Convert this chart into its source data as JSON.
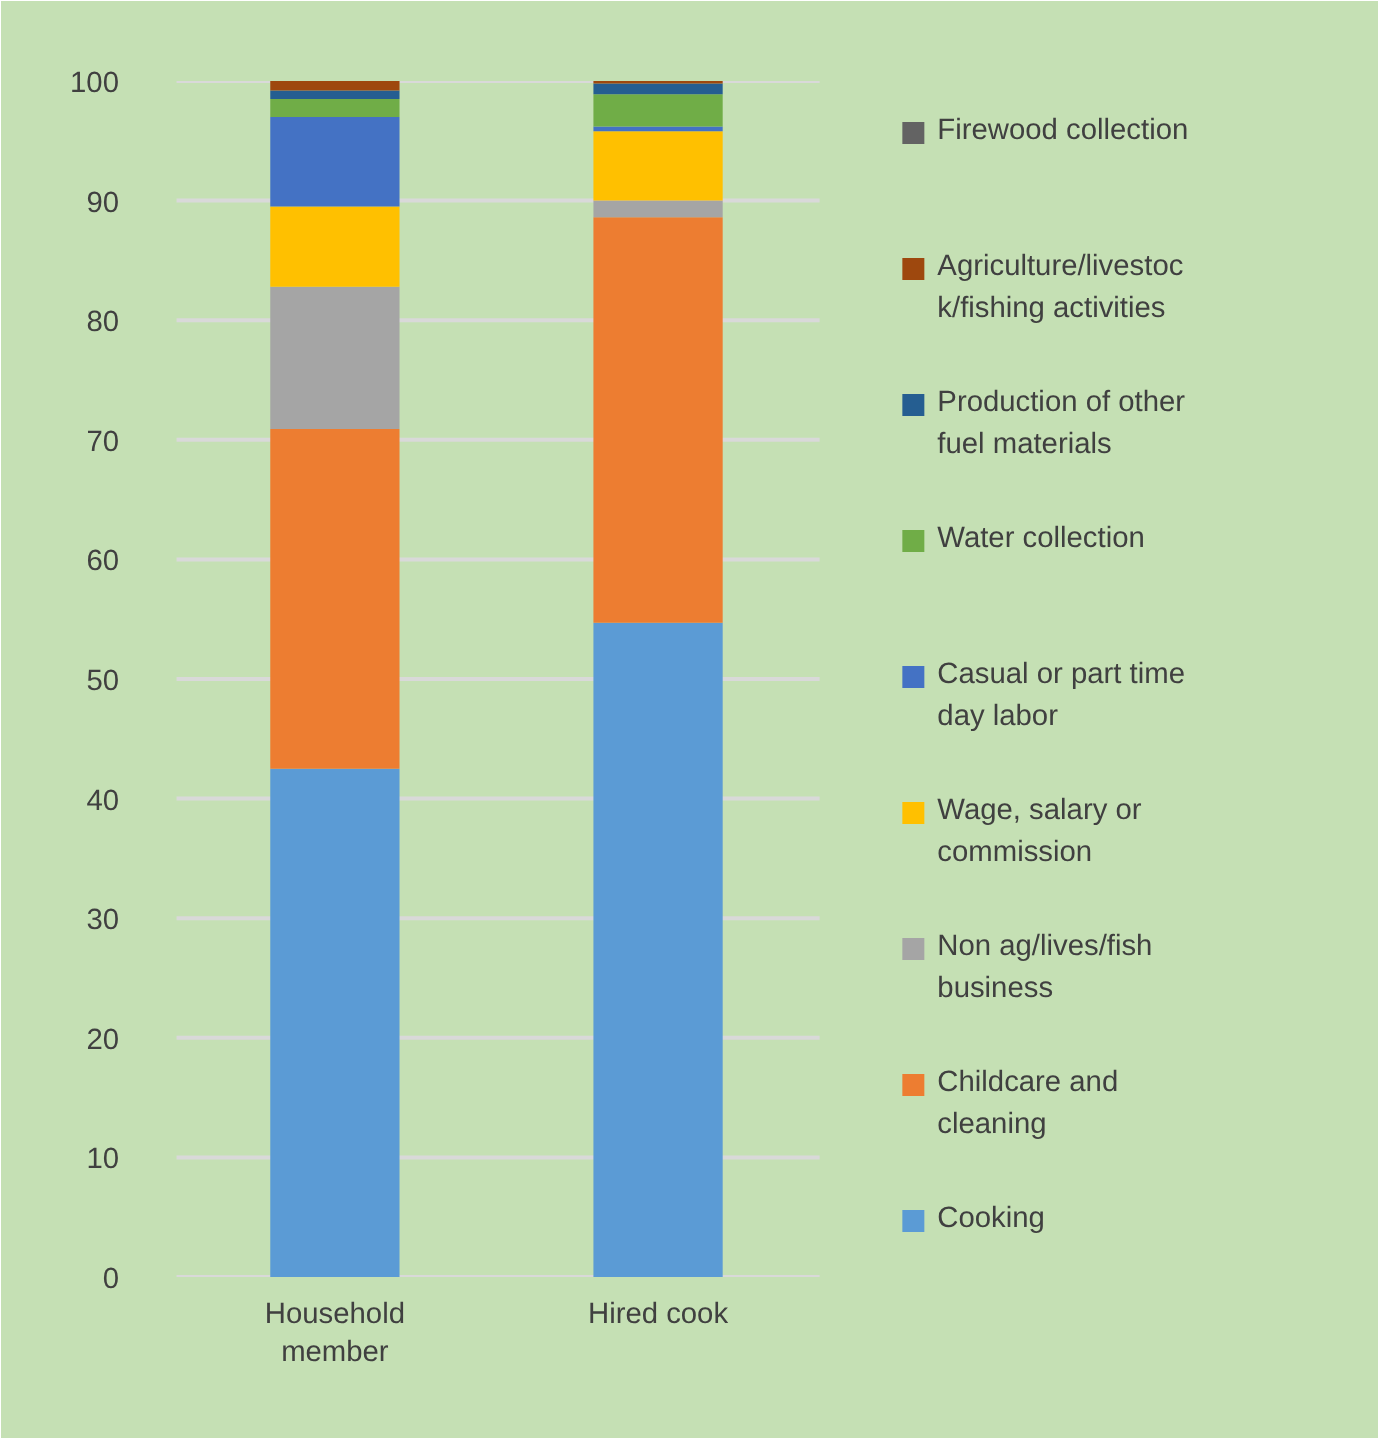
{
  "chart_data": {
    "type": "bar",
    "stacked": true,
    "categories": [
      "Household member",
      "Hired cook"
    ],
    "series": [
      {
        "name": "Cooking",
        "color": "#5b9bd5",
        "values": [
          42.5,
          54.7
        ]
      },
      {
        "name": "Childcare and cleaning",
        "color": "#ed7d31",
        "values": [
          28.4,
          33.9
        ]
      },
      {
        "name": "Non ag/lives/fish business",
        "color": "#a5a5a5",
        "values": [
          11.9,
          1.4
        ]
      },
      {
        "name": "Wage, salary or commission",
        "color": "#ffc000",
        "values": [
          6.7,
          5.8
        ]
      },
      {
        "name": "Casual or part time day labor",
        "color": "#4472c4",
        "values": [
          7.5,
          0.4
        ]
      },
      {
        "name": "Water collection",
        "color": "#70ad47",
        "values": [
          1.5,
          2.7
        ]
      },
      {
        "name": "Production of other fuel materials",
        "color": "#255e91",
        "values": [
          0.7,
          0.9
        ]
      },
      {
        "name": "Agriculture/livestock/fishing activities",
        "color": "#9e480e",
        "values": [
          0.8,
          0.2
        ]
      },
      {
        "name": "Firewood collection",
        "color": "#636363",
        "values": [
          0,
          0
        ]
      }
    ],
    "ylim": [
      0,
      100
    ],
    "yticks": [
      0,
      10,
      20,
      30,
      40,
      50,
      60,
      70,
      80,
      90,
      100
    ],
    "grid": "y",
    "legend": "right"
  }
}
